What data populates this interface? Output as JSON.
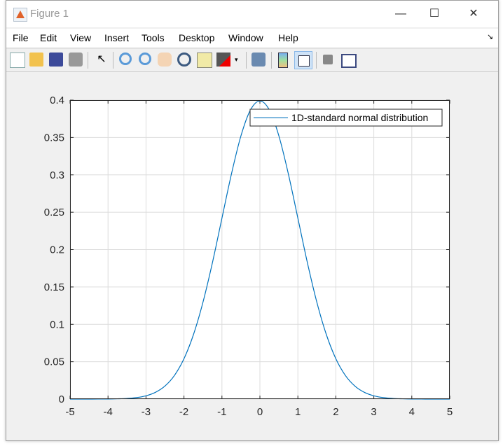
{
  "window": {
    "title": "Figure 1",
    "minimize": "—",
    "maximize": "☐",
    "close": "✕"
  },
  "menu": [
    "File",
    "Edit",
    "View",
    "Insert",
    "Tools",
    "Desktop",
    "Window",
    "Help"
  ],
  "toolbar": [
    "new-figure-icon",
    "open-file-icon",
    "save-icon",
    "print-icon",
    "edit-plot-pointer-icon",
    "zoom-in-icon",
    "zoom-out-icon",
    "pan-hand-icon",
    "rotate-3d-icon",
    "data-cursor-icon",
    "brush-icon",
    "link-plot-icon",
    "insert-colorbar-icon",
    "insert-legend-icon",
    "hide-plot-tools-icon",
    "show-plot-tools-icon"
  ],
  "chart_data": {
    "type": "line",
    "title": "",
    "xlabel": "",
    "ylabel": "",
    "xlim": [
      -5,
      5
    ],
    "ylim": [
      0,
      0.4
    ],
    "xticks": [
      "-5",
      "-4",
      "-3",
      "-2",
      "-1",
      "0",
      "1",
      "2",
      "3",
      "4",
      "5"
    ],
    "yticks": [
      "0",
      "0.05",
      "0.1",
      "0.15",
      "0.2",
      "0.25",
      "0.3",
      "0.35",
      "0.4"
    ],
    "grid": true,
    "legend_placement": "top-right",
    "series": [
      {
        "name": "1D-standard normal distribution",
        "color": "#0072BD",
        "x": [
          -5,
          -4.75,
          -4.5,
          -4.25,
          -4,
          -3.75,
          -3.5,
          -3.25,
          -3,
          -2.75,
          -2.5,
          -2.25,
          -2,
          -1.75,
          -1.5,
          -1.25,
          -1,
          -0.75,
          -0.5,
          -0.25,
          0,
          0.25,
          0.5,
          0.75,
          1,
          1.25,
          1.5,
          1.75,
          2,
          2.25,
          2.5,
          2.75,
          3,
          3.25,
          3.5,
          3.75,
          4,
          4.25,
          4.5,
          4.75,
          5
        ],
        "y": [
          1.5e-06,
          5e-06,
          2e-05,
          5e-05,
          0.0001,
          0.0004,
          0.0009,
          0.002,
          0.0044,
          0.0091,
          0.0175,
          0.0317,
          0.054,
          0.0863,
          0.1295,
          0.1826,
          0.242,
          0.3011,
          0.3521,
          0.3867,
          0.3989,
          0.3867,
          0.3521,
          0.3011,
          0.242,
          0.1826,
          0.1295,
          0.0863,
          0.054,
          0.0317,
          0.0175,
          0.0091,
          0.0044,
          0.002,
          0.0009,
          0.0004,
          0.0001,
          5e-05,
          2e-05,
          5e-06,
          1.5e-06
        ]
      }
    ]
  }
}
